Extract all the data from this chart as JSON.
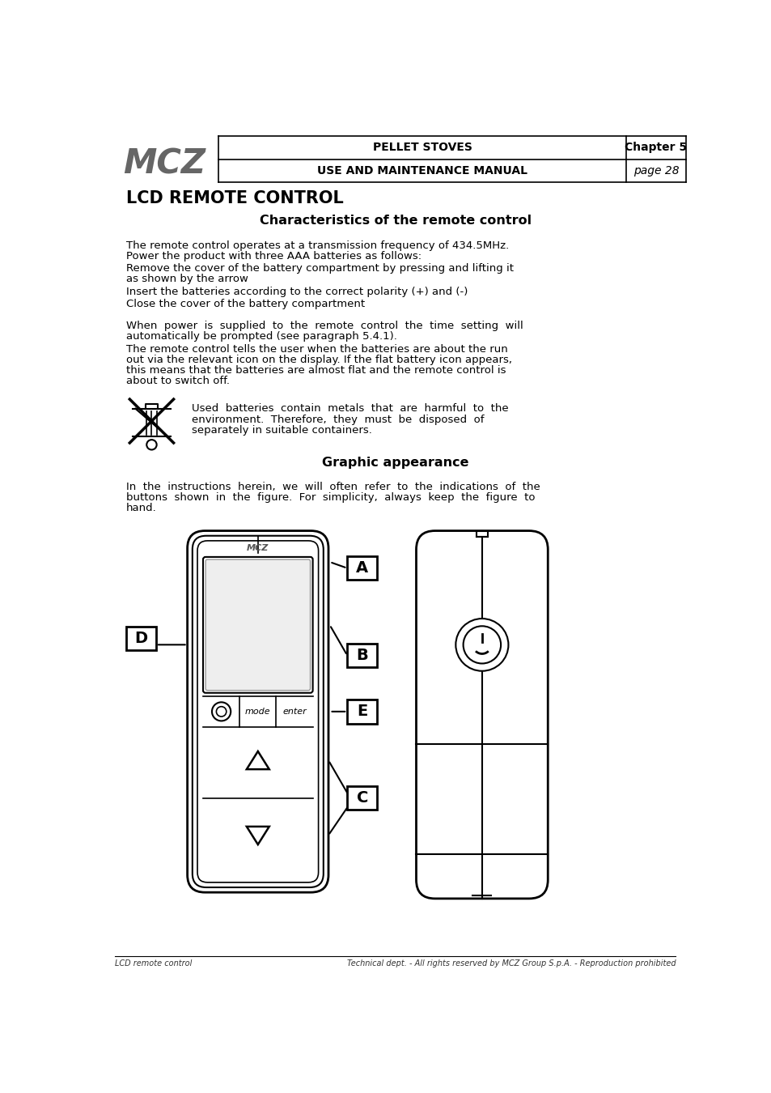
{
  "bg_color": "#ffffff",
  "header": {
    "title_line1": "PELLET STOVES",
    "title_line2": "USE AND MAINTENANCE MANUAL",
    "chapter_label": "Chapter 5",
    "page_label": "page 28"
  },
  "main_title": "LCD REMOTE CONTROL",
  "section_title": "Characteristics of the remote control",
  "para1": "The remote control operates at a transmission frequency of 434.5MHz.\nPower the product with three AAA batteries as follows:",
  "para2": "Remove the cover of the battery compartment by pressing and lifting it\nas shown by the arrow",
  "para3": "Insert the batteries according to the correct polarity (+) and (-)",
  "para4": "Close the cover of the battery compartment",
  "para5": "When  power  is  supplied  to  the  remote  control  the  time  setting  will\nautomatically be prompted (see paragraph 5.4.1).",
  "para6": "The remote control tells the user when the batteries are about the run\nout via the relevant icon on the display. If the flat battery icon appears,\nthis means that the batteries are almost flat and the remote control is\nabout to switch off.",
  "warning_text": "Used  batteries  contain  metals  that  are  harmful  to  the\nenvironment.  Therefore,  they  must  be  disposed  of\nseparately in suitable containers.",
  "section2_title": "Graphic appearance",
  "graphic_para": "In  the  instructions  herein,  we  will  often  refer  to  the  indications  of  the\nbuttons  shown  in  the  figure.  For  simplicity,  always  keep  the  figure  to\nhand.",
  "footer_left": "LCD remote control",
  "footer_right": "Technical dept. - All rights reserved by MCZ Group S.p.A. - Reproduction prohibited"
}
